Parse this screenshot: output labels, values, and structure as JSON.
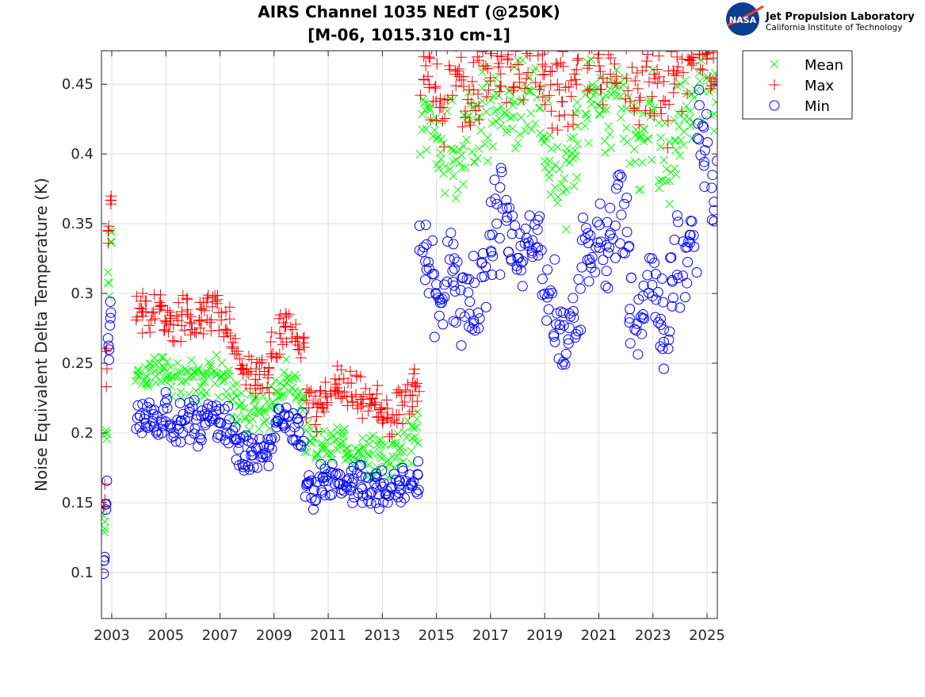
{
  "logo": {
    "org_name": "Jet Propulsion Laboratory",
    "org_sub": "California Institute of Technology",
    "badge": "NASA"
  },
  "chart_data": {
    "type": "scatter",
    "title": [
      "AIRS Channel 1035 NEdT (@250K)",
      "[M-06, 1015.310 cm-1]"
    ],
    "xlabel": "",
    "ylabel": "Noise Equivalent Delta Temperature (K)",
    "xlim": [
      2002.62,
      2025.38
    ],
    "ylim": [
      0.067,
      0.474
    ],
    "xticks": [
      2003,
      2005,
      2007,
      2009,
      2011,
      2013,
      2015,
      2017,
      2019,
      2021,
      2023,
      2025
    ],
    "xtick_labels": [
      "2003",
      "2005",
      "2007",
      "2009",
      "2011",
      "2013",
      "2015",
      "2017",
      "2019",
      "2021",
      "2023",
      "2025"
    ],
    "yticks": [
      0.1,
      0.15,
      0.2,
      0.25,
      0.3,
      0.35,
      0.4,
      0.45
    ],
    "ytick_labels": [
      "0.1",
      "0.15",
      "0.2",
      "0.25",
      "0.3",
      "0.35",
      "0.4",
      "0.45"
    ],
    "grid": true,
    "legend_position": "outside-top-right",
    "x": [
      2002.72,
      2002.8,
      2002.88,
      2002.96,
      2004.0,
      2004.25,
      2004.5,
      2004.75,
      2005.0,
      2005.25,
      2005.5,
      2005.75,
      2006.0,
      2006.25,
      2006.5,
      2006.75,
      2007.0,
      2007.25,
      2007.5,
      2007.75,
      2008.0,
      2008.25,
      2008.5,
      2008.75,
      2009.0,
      2009.25,
      2009.5,
      2009.75,
      2010.0,
      2010.25,
      2010.5,
      2010.75,
      2011.0,
      2011.25,
      2011.5,
      2011.75,
      2012.0,
      2012.25,
      2012.5,
      2012.75,
      2013.0,
      2013.25,
      2013.5,
      2013.75,
      2014.0,
      2014.25,
      2014.5,
      2014.75,
      2015.0,
      2015.25,
      2015.5,
      2015.75,
      2016.0,
      2016.25,
      2016.5,
      2016.75,
      2017.0,
      2017.25,
      2017.5,
      2017.75,
      2018.0,
      2018.25,
      2018.5,
      2018.75,
      2019.0,
      2019.25,
      2019.5,
      2019.75,
      2020.0,
      2020.25,
      2020.5,
      2020.75,
      2021.0,
      2021.25,
      2021.5,
      2021.75,
      2022.0,
      2022.25,
      2022.5,
      2022.75,
      2023.0,
      2023.25,
      2023.5,
      2023.75,
      2024.0,
      2024.25,
      2024.5,
      2024.75,
      2025.0,
      2025.25
    ],
    "series": [
      {
        "name": "Mean",
        "marker": "x",
        "color": "#00ff00",
        "values": [
          0.13,
          0.2,
          0.31,
          0.34,
          0.245,
          0.24,
          0.245,
          0.24,
          0.245,
          0.24,
          0.24,
          0.24,
          0.24,
          0.235,
          0.24,
          0.245,
          0.24,
          0.235,
          0.225,
          0.22,
          0.215,
          0.22,
          0.21,
          0.215,
          0.225,
          0.235,
          0.24,
          0.23,
          0.225,
          0.19,
          0.185,
          0.19,
          0.19,
          0.195,
          0.19,
          0.19,
          0.185,
          0.19,
          0.185,
          0.185,
          0.185,
          0.18,
          0.185,
          0.19,
          0.195,
          0.2,
          0.43,
          0.42,
          0.41,
          0.39,
          0.42,
          0.4,
          0.4,
          0.42,
          0.41,
          0.43,
          0.43,
          0.44,
          0.43,
          0.43,
          0.44,
          0.44,
          0.45,
          0.43,
          0.41,
          0.39,
          0.38,
          0.38,
          0.39,
          0.41,
          0.43,
          0.44,
          0.44,
          0.43,
          0.44,
          0.45,
          0.44,
          0.41,
          0.4,
          0.42,
          0.43,
          0.4,
          0.39,
          0.41,
          0.42,
          0.43,
          0.44,
          0.46,
          0.45,
          0.44
        ]
      },
      {
        "name": "Max",
        "marker": "+",
        "color": "#ff0000",
        "values": [
          0.15,
          0.25,
          0.35,
          0.37,
          0.29,
          0.285,
          0.285,
          0.29,
          0.285,
          0.28,
          0.28,
          0.285,
          0.28,
          0.28,
          0.285,
          0.29,
          0.285,
          0.275,
          0.26,
          0.25,
          0.245,
          0.245,
          0.24,
          0.24,
          0.255,
          0.27,
          0.275,
          0.27,
          0.26,
          0.22,
          0.215,
          0.22,
          0.23,
          0.235,
          0.23,
          0.23,
          0.225,
          0.225,
          0.22,
          0.22,
          0.215,
          0.21,
          0.215,
          0.22,
          0.225,
          0.23,
          0.46,
          0.46,
          0.45,
          0.44,
          0.46,
          0.45,
          0.44,
          0.45,
          0.45,
          0.46,
          0.47,
          0.47,
          0.47,
          0.47,
          0.47,
          0.47,
          0.47,
          0.47,
          0.46,
          0.45,
          0.44,
          0.44,
          0.45,
          0.46,
          0.47,
          0.47,
          0.47,
          0.47,
          0.47,
          0.47,
          0.47,
          0.46,
          0.45,
          0.46,
          0.46,
          0.45,
          0.44,
          0.46,
          0.46,
          0.47,
          0.47,
          0.47,
          0.47,
          0.47
        ]
      },
      {
        "name": "Min",
        "marker": "o",
        "color": "#0000ff",
        "values": [
          0.11,
          0.15,
          0.26,
          0.29,
          0.21,
          0.21,
          0.215,
          0.21,
          0.215,
          0.21,
          0.205,
          0.21,
          0.21,
          0.205,
          0.21,
          0.21,
          0.21,
          0.205,
          0.195,
          0.19,
          0.185,
          0.19,
          0.185,
          0.185,
          0.195,
          0.21,
          0.21,
          0.205,
          0.2,
          0.165,
          0.16,
          0.165,
          0.165,
          0.17,
          0.165,
          0.165,
          0.16,
          0.165,
          0.16,
          0.16,
          0.16,
          0.155,
          0.16,
          0.165,
          0.165,
          0.17,
          0.33,
          0.32,
          0.3,
          0.28,
          0.33,
          0.3,
          0.28,
          0.3,
          0.29,
          0.31,
          0.33,
          0.35,
          0.36,
          0.34,
          0.33,
          0.33,
          0.34,
          0.33,
          0.31,
          0.3,
          0.27,
          0.27,
          0.27,
          0.3,
          0.33,
          0.33,
          0.34,
          0.33,
          0.34,
          0.36,
          0.34,
          0.29,
          0.28,
          0.3,
          0.31,
          0.28,
          0.27,
          0.31,
          0.32,
          0.33,
          0.34,
          0.42,
          0.4,
          0.38
        ]
      }
    ]
  }
}
